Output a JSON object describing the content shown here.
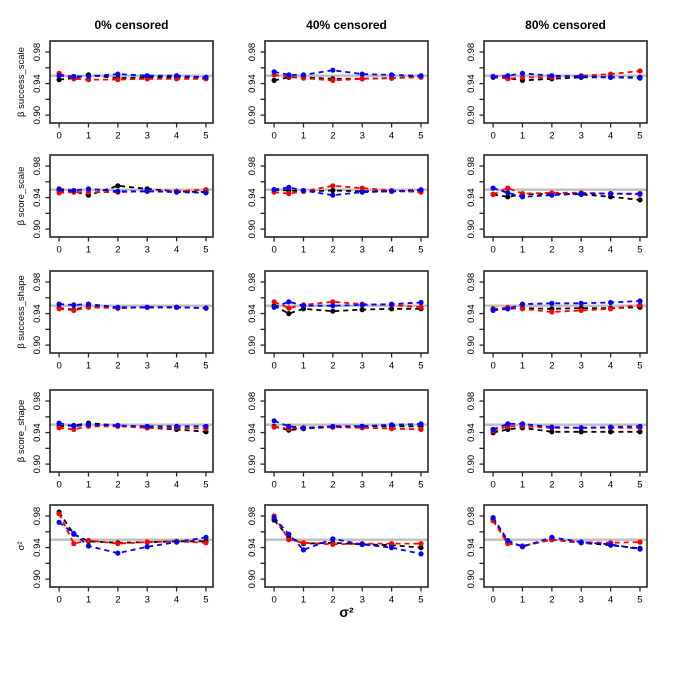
{
  "chart_data": {
    "type": "line",
    "description": "5x3 grid of coverage-probability simulation panels; rows are parameters, columns are censoring levels; three dashed dotted series (black, red, blue) around a gray nominal 0.95 reference line",
    "col_titles": [
      "0% censored",
      "40% censored",
      "80% censored"
    ],
    "row_labels": [
      "β success_scale",
      "β score_scale",
      "β success_shape",
      "β score_shape",
      "σ²"
    ],
    "xlabel": "σ²",
    "x": [
      0,
      0.5,
      1,
      2,
      3,
      4,
      5
    ],
    "xtick_labels": [
      "0",
      "1",
      "2",
      "3",
      "4",
      "5"
    ],
    "ytick_values": [
      0.9,
      0.92,
      0.94,
      0.96,
      0.98
    ],
    "ytick_labeled_values": [
      0.9,
      0.94,
      0.98
    ],
    "ytick_labels": [
      "0.90",
      "0.94",
      "0.98"
    ],
    "xlim": [
      -0.31,
      5.24
    ],
    "ylim": [
      0.89,
      0.994
    ],
    "reference_line": 0.95,
    "reference_color": "#BEBEBE",
    "axis_color": "#262626",
    "series_names": [
      "black",
      "red",
      "blue"
    ],
    "series_colors": {
      "black": "#000000",
      "red": "#FF0000",
      "blue": "#0000FF"
    },
    "panels": [
      {
        "row_label": "β success_scale",
        "col_title": "0% censored",
        "black": [
          0.945,
          0.947,
          0.951,
          0.947,
          0.948,
          0.948,
          0.948
        ],
        "red": [
          0.953,
          0.946,
          0.945,
          0.945,
          0.946,
          0.946,
          0.946
        ],
        "blue": [
          0.95,
          0.949,
          0.949,
          0.952,
          0.95,
          0.95,
          0.948
        ]
      },
      {
        "row_label": "β success_scale",
        "col_title": "40% censored",
        "black": [
          0.944,
          0.948,
          0.948,
          0.946,
          0.946,
          0.947,
          0.949
        ],
        "red": [
          0.951,
          0.949,
          0.947,
          0.944,
          0.946,
          0.947,
          0.948
        ],
        "blue": [
          0.955,
          0.951,
          0.951,
          0.957,
          0.952,
          0.951,
          0.95
        ]
      },
      {
        "row_label": "β success_scale",
        "col_title": "80% censored",
        "black": [
          0.948,
          0.947,
          0.944,
          0.946,
          0.948,
          0.948,
          0.948
        ],
        "red": [
          0.949,
          0.946,
          0.948,
          0.948,
          0.95,
          0.952,
          0.956
        ],
        "blue": [
          0.949,
          0.95,
          0.953,
          0.95,
          0.949,
          0.948,
          0.947
        ]
      },
      {
        "row_label": "β score_scale",
        "col_title": "0% censored",
        "black": [
          0.949,
          0.948,
          0.943,
          0.955,
          0.951,
          0.948,
          0.947
        ],
        "red": [
          0.946,
          0.947,
          0.947,
          0.947,
          0.948,
          0.948,
          0.95
        ],
        "blue": [
          0.951,
          0.949,
          0.951,
          0.948,
          0.948,
          0.947,
          0.946
        ]
      },
      {
        "row_label": "β score_scale",
        "col_title": "40% censored",
        "black": [
          0.95,
          0.949,
          0.948,
          0.949,
          0.948,
          0.948,
          0.948
        ],
        "red": [
          0.947,
          0.945,
          0.948,
          0.955,
          0.952,
          0.949,
          0.947
        ],
        "blue": [
          0.95,
          0.953,
          0.949,
          0.943,
          0.947,
          0.948,
          0.95
        ]
      },
      {
        "row_label": "β score_scale",
        "col_title": "80% censored",
        "black": [
          0.944,
          0.941,
          0.944,
          0.945,
          0.944,
          0.941,
          0.937
        ],
        "red": [
          0.944,
          0.952,
          0.945,
          0.946,
          0.946,
          0.945,
          0.944
        ],
        "blue": [
          0.952,
          0.946,
          0.941,
          0.943,
          0.945,
          0.945,
          0.945
        ]
      },
      {
        "row_label": "β success_shape",
        "col_title": "0% censored",
        "black": [
          0.947,
          0.945,
          0.949,
          0.947,
          0.948,
          0.948,
          0.947
        ],
        "red": [
          0.946,
          0.944,
          0.948,
          0.947,
          0.948,
          0.948,
          0.947
        ],
        "blue": [
          0.952,
          0.951,
          0.952,
          0.948,
          0.948,
          0.948,
          0.947
        ]
      },
      {
        "row_label": "β success_shape",
        "col_title": "40% censored",
        "black": [
          0.95,
          0.94,
          0.946,
          0.943,
          0.945,
          0.946,
          0.946
        ],
        "red": [
          0.955,
          0.947,
          0.951,
          0.955,
          0.952,
          0.951,
          0.948
        ],
        "blue": [
          0.948,
          0.955,
          0.95,
          0.95,
          0.951,
          0.952,
          0.954
        ]
      },
      {
        "row_label": "β success_shape",
        "col_title": "80% censored",
        "black": [
          0.946,
          0.946,
          0.947,
          0.946,
          0.947,
          0.947,
          0.948
        ],
        "red": [
          0.945,
          0.948,
          0.946,
          0.942,
          0.944,
          0.946,
          0.951
        ],
        "blue": [
          0.944,
          0.946,
          0.952,
          0.953,
          0.953,
          0.954,
          0.956
        ]
      },
      {
        "row_label": "β score_shape",
        "col_title": "0% censored",
        "black": [
          0.948,
          0.949,
          0.952,
          0.949,
          0.946,
          0.944,
          0.941
        ],
        "red": [
          0.946,
          0.944,
          0.948,
          0.948,
          0.946,
          0.946,
          0.945
        ],
        "blue": [
          0.952,
          0.948,
          0.95,
          0.949,
          0.948,
          0.948,
          0.948
        ]
      },
      {
        "row_label": "β score_shape",
        "col_title": "40% censored",
        "black": [
          0.948,
          0.943,
          0.945,
          0.947,
          0.948,
          0.948,
          0.948
        ],
        "red": [
          0.947,
          0.945,
          0.946,
          0.947,
          0.946,
          0.945,
          0.944
        ],
        "blue": [
          0.955,
          0.948,
          0.946,
          0.948,
          0.948,
          0.95,
          0.951
        ]
      },
      {
        "row_label": "β score_shape",
        "col_title": "80% censored",
        "black": [
          0.94,
          0.944,
          0.946,
          0.941,
          0.941,
          0.941,
          0.941
        ],
        "red": [
          0.942,
          0.948,
          0.948,
          0.946,
          0.946,
          0.946,
          0.946
        ],
        "blue": [
          0.944,
          0.951,
          0.951,
          0.947,
          0.946,
          0.947,
          0.948
        ]
      },
      {
        "row_label": "σ²",
        "col_title": "0% censored",
        "black": [
          0.985,
          0.957,
          0.948,
          0.946,
          0.947,
          0.948,
          0.948
        ],
        "red": [
          0.983,
          0.945,
          0.949,
          0.945,
          0.947,
          0.948,
          0.946
        ],
        "blue": [
          0.972,
          0.958,
          0.942,
          0.933,
          0.941,
          0.947,
          0.953
        ]
      },
      {
        "row_label": "σ²",
        "col_title": "40% censored",
        "black": [
          0.975,
          0.953,
          0.945,
          0.946,
          0.944,
          0.943,
          0.94
        ],
        "red": [
          0.98,
          0.95,
          0.946,
          0.944,
          0.945,
          0.945,
          0.945
        ],
        "blue": [
          0.978,
          0.957,
          0.937,
          0.951,
          0.944,
          0.94,
          0.932
        ]
      },
      {
        "row_label": "σ²",
        "col_title": "80% censored",
        "black": [
          0.976,
          0.947,
          0.942,
          0.95,
          0.946,
          0.943,
          0.939
        ],
        "red": [
          0.974,
          0.945,
          0.942,
          0.95,
          0.947,
          0.946,
          0.947
        ],
        "blue": [
          0.978,
          0.949,
          0.941,
          0.953,
          0.947,
          0.944,
          0.938
        ]
      }
    ]
  }
}
